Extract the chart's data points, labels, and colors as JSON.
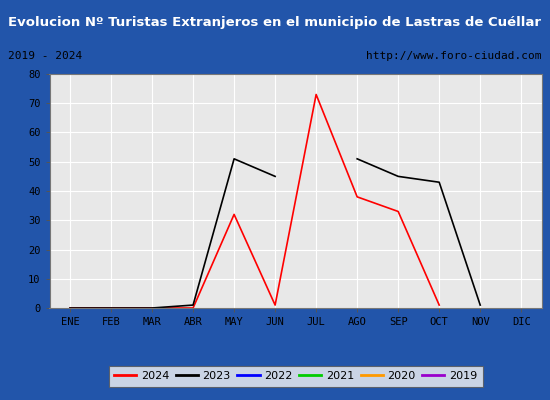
{
  "title": "Evolucion Nº Turistas Extranjeros en el municipio de Lastras de Cuéllar",
  "subtitle_left": "2019 - 2024",
  "subtitle_right": "http://www.foro-ciudad.com",
  "months": [
    "ENE",
    "FEB",
    "MAR",
    "ABR",
    "MAY",
    "JUN",
    "JUL",
    "AGO",
    "SEP",
    "OCT",
    "NOV",
    "DIC"
  ],
  "series": {
    "2024": {
      "color": "#ff0000",
      "data": [
        0,
        0,
        0,
        0,
        32,
        1,
        73,
        38,
        33,
        1,
        null,
        null
      ]
    },
    "2023": {
      "color": "#000000",
      "data": [
        0,
        0,
        0,
        1,
        51,
        45,
        null,
        51,
        45,
        43,
        1,
        null
      ]
    },
    "2022": {
      "color": "#0000ff",
      "data": [
        null,
        null,
        null,
        null,
        null,
        null,
        null,
        null,
        null,
        null,
        null,
        null
      ]
    },
    "2021": {
      "color": "#00cc00",
      "data": [
        null,
        null,
        null,
        null,
        null,
        null,
        null,
        null,
        null,
        null,
        null,
        null
      ]
    },
    "2020": {
      "color": "#ff9900",
      "data": [
        null,
        null,
        null,
        null,
        null,
        null,
        null,
        null,
        null,
        null,
        null,
        null
      ]
    },
    "2019": {
      "color": "#9900cc",
      "data": [
        null,
        null,
        null,
        null,
        null,
        null,
        null,
        null,
        null,
        null,
        null,
        null
      ]
    }
  },
  "ylim": [
    0,
    80
  ],
  "yticks": [
    0,
    10,
    20,
    30,
    40,
    50,
    60,
    70,
    80
  ],
  "title_bg": "#4472c4",
  "title_color": "#ffffff",
  "subtitle_bg": "#f0f0f0",
  "subtitle_color": "#000000",
  "plot_bg": "#e8e8e8",
  "outer_bg": "#ffffff",
  "grid_color": "#ffffff",
  "border_color": "#2255aa",
  "legend_order": [
    "2024",
    "2023",
    "2022",
    "2021",
    "2020",
    "2019"
  ]
}
